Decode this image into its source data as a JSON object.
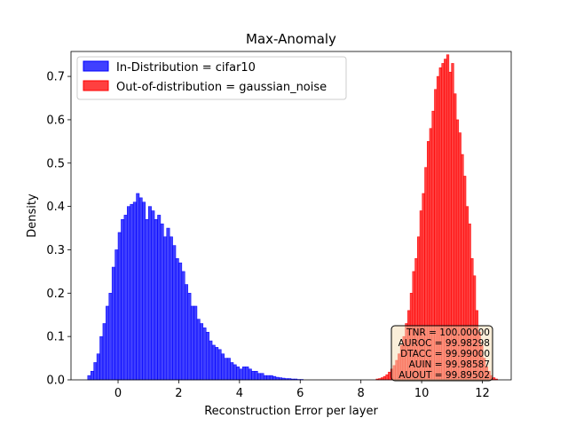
{
  "chart_data": {
    "type": "histogram",
    "title": "Max-Anomaly",
    "xlabel": "Reconstruction Error per layer",
    "ylabel": "Density",
    "xlim": [
      -1.55,
      12.95
    ],
    "ylim": [
      0,
      0.7575
    ],
    "xticks": [
      0,
      2,
      4,
      6,
      8,
      10,
      12
    ],
    "yticks": [
      0.0,
      0.1,
      0.2,
      0.3,
      0.4,
      0.5,
      0.6,
      0.7
    ],
    "grid": false,
    "legend_position": "top-left",
    "series": [
      {
        "name": "In-Distribution = cifar10",
        "color": "#0000ff",
        "fill_opacity": 0.75,
        "bin_start": -1.0,
        "bin_width": 0.1,
        "values": [
          0.01,
          0.02,
          0.04,
          0.06,
          0.1,
          0.13,
          0.17,
          0.2,
          0.26,
          0.3,
          0.34,
          0.37,
          0.38,
          0.4,
          0.405,
          0.41,
          0.43,
          0.42,
          0.41,
          0.37,
          0.4,
          0.39,
          0.37,
          0.38,
          0.36,
          0.33,
          0.35,
          0.33,
          0.31,
          0.28,
          0.27,
          0.25,
          0.22,
          0.2,
          0.17,
          0.17,
          0.14,
          0.13,
          0.12,
          0.11,
          0.09,
          0.08,
          0.075,
          0.07,
          0.06,
          0.05,
          0.05,
          0.04,
          0.035,
          0.03,
          0.025,
          0.03,
          0.03,
          0.025,
          0.02,
          0.02,
          0.015,
          0.015,
          0.01,
          0.01,
          0.01,
          0.008,
          0.006,
          0.005,
          0.004,
          0.003,
          0.003,
          0.002,
          0.002,
          0.001,
          0.001
        ]
      },
      {
        "name": "Out-of-distribution = gaussian_noise",
        "color": "#ff0000",
        "fill_opacity": 0.75,
        "bin_start": 8.5,
        "bin_width": 0.08,
        "values": [
          0.002,
          0.003,
          0.005,
          0.008,
          0.012,
          0.018,
          0.025,
          0.033,
          0.045,
          0.06,
          0.08,
          0.1,
          0.13,
          0.16,
          0.2,
          0.25,
          0.28,
          0.33,
          0.39,
          0.43,
          0.49,
          0.55,
          0.58,
          0.62,
          0.67,
          0.7,
          0.72,
          0.73,
          0.74,
          0.75,
          0.71,
          0.73,
          0.66,
          0.6,
          0.57,
          0.52,
          0.47,
          0.4,
          0.36,
          0.28,
          0.24,
          0.16,
          0.11,
          0.08,
          0.05,
          0.03,
          0.02,
          0.01,
          0.005,
          0.002
        ]
      }
    ],
    "stats_box": {
      "lines": [
        "TNR = 100.00000",
        "AUROC = 99.98298",
        "DTACC = 99.99000",
        "AUIN = 99.98587",
        "AUOUT = 99.89502"
      ],
      "fill": "#f5deb3",
      "border": "#000000"
    }
  }
}
